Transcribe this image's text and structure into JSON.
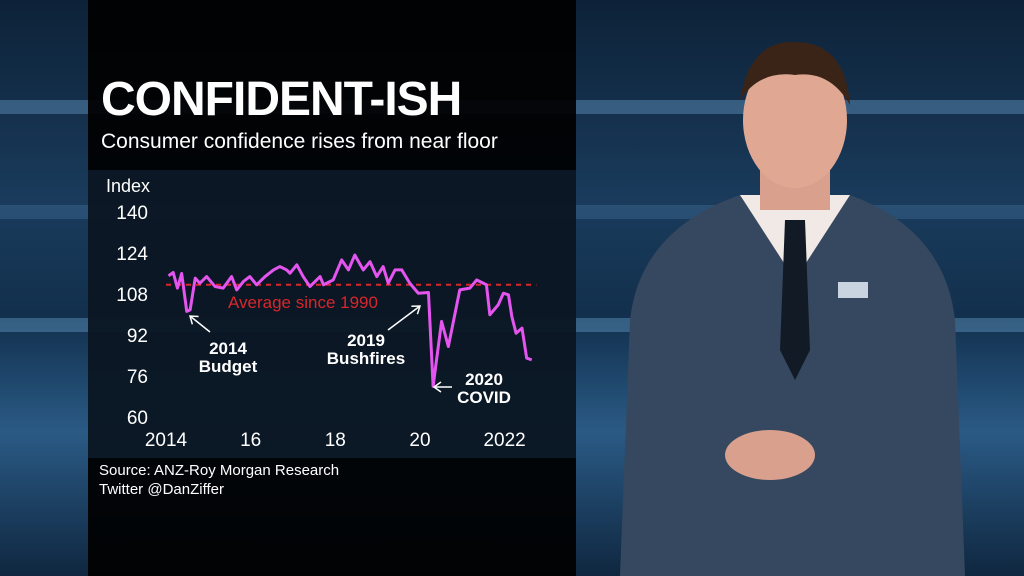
{
  "graphic": {
    "title": "CONFIDENT-ISH",
    "subtitle": "Consumer confidence rises from near floor",
    "source": "Source: ANZ-Roy Morgan Research",
    "credit": "Twitter @DanZiffer"
  },
  "chart_data": {
    "type": "line",
    "ylabel": "Index",
    "ylim": [
      60,
      140
    ],
    "yticks": [
      "140",
      "124",
      "108",
      "92",
      "76",
      "60"
    ],
    "ytick_values": [
      140,
      124,
      108,
      92,
      76,
      60
    ],
    "xlim": [
      2014,
      2022.7
    ],
    "xticks": [
      "2014",
      "16",
      "18",
      "20",
      "2022"
    ],
    "xtick_values": [
      2014,
      2016,
      2018,
      2020,
      2022
    ],
    "grid": false,
    "line_color": "#e455f0",
    "reference_line": {
      "label": "Average since 1990",
      "value": 111.6,
      "color": "#d9262c"
    },
    "annotations": [
      {
        "line1": "2014",
        "line2": "Budget",
        "x": 2014.49,
        "y": 101.2
      },
      {
        "line1": "2019",
        "line2": "Bushfires",
        "x": 2019.96,
        "y": 108.3
      },
      {
        "line1": "2020",
        "line2": "COVID",
        "x": 2020.31,
        "y": 72
      }
    ],
    "series": [
      {
        "x": [
          2014.06,
          2014.17,
          2014.27,
          2014.37,
          2014.49,
          2014.57,
          2014.69,
          2014.8,
          2014.96,
          2015.16,
          2015.35,
          2015.55,
          2015.67,
          2015.83,
          2015.98,
          2016.14,
          2016.34,
          2016.54,
          2016.69,
          2016.85,
          2016.93,
          2017.09,
          2017.24,
          2017.4,
          2017.64,
          2017.72,
          2017.95,
          2018.15,
          2018.31,
          2018.46,
          2018.66,
          2018.82,
          2018.98,
          2019.13,
          2019.25,
          2019.41,
          2019.57,
          2019.76,
          2019.96,
          2020.2,
          2020.31,
          2020.51,
          2020.67,
          2020.94,
          2021.18,
          2021.34,
          2021.57,
          2021.65,
          2021.85,
          2021.97,
          2022.09,
          2022.17,
          2022.27,
          2022.41,
          2022.52,
          2022.64
        ],
        "y": [
          115.1,
          116.4,
          110.3,
          116,
          101.2,
          101.8,
          114.2,
          112.2,
          114.8,
          110.9,
          110.3,
          114.8,
          109.6,
          112.9,
          114.8,
          111.6,
          114.8,
          117.4,
          118.7,
          117.4,
          116.1,
          119.4,
          114.8,
          110.9,
          114.8,
          111.6,
          113.5,
          121.3,
          117.4,
          123.2,
          117.4,
          120.6,
          114.8,
          118.7,
          112.2,
          117.4,
          117.4,
          112.2,
          108.3,
          108.6,
          72,
          97.3,
          87.5,
          109.6,
          110.3,
          113.5,
          111.6,
          99.9,
          103.8,
          108.3,
          107.7,
          99.2,
          92.7,
          94.7,
          83,
          82.3
        ]
      }
    ]
  }
}
